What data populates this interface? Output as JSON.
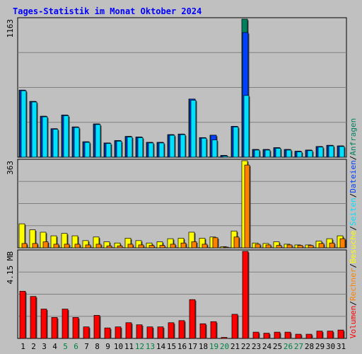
{
  "title": "Tages-Statistik im Monat Oktober 2024",
  "colors": {
    "background": "#c0c0c0",
    "title": "#0000ff",
    "anfragen": "#00805c",
    "dateien": "#0040ff",
    "seiten": "#00e0ff",
    "besuche": "#ffff00",
    "rechner": "#ff8000",
    "volumen": "#ff0000",
    "weekend_label": "#008040"
  },
  "right_legend": [
    {
      "text": "Volumen",
      "color": "#ff0000"
    },
    {
      "text": "/",
      "color": "#000000"
    },
    {
      "text": "Rechner",
      "color": "#ff8000"
    },
    {
      "text": "/",
      "color": "#000000"
    },
    {
      "text": "Besuche",
      "color": "#ffff00"
    },
    {
      "text": "/",
      "color": "#000000"
    },
    {
      "text": "Seiten",
      "color": "#00e0ff"
    },
    {
      "text": "/",
      "color": "#000000"
    },
    {
      "text": "Dateien",
      "color": "#0040ff"
    },
    {
      "text": "/",
      "color": "#000000"
    },
    {
      "text": "Anfragen",
      "color": "#00805c"
    }
  ],
  "chart_data": [
    {
      "type": "bar",
      "panel": "hits",
      "ymax_label": "1163",
      "ylim": [
        0,
        1163
      ],
      "categories": [
        "1",
        "2",
        "3",
        "4",
        "5",
        "6",
        "7",
        "8",
        "9",
        "10",
        "11",
        "12",
        "13",
        "14",
        "15",
        "16",
        "17",
        "18",
        "19",
        "20",
        "21",
        "22",
        "23",
        "24",
        "25",
        "26",
        "27",
        "28",
        "29",
        "30",
        "31"
      ],
      "series": [
        {
          "name": "Anfragen",
          "values": [
            565,
            470,
            345,
            240,
            355,
            255,
            130,
            280,
            120,
            140,
            175,
            170,
            125,
            125,
            190,
            195,
            490,
            165,
            185,
            15,
            260,
            1163,
            65,
            65,
            80,
            65,
            50,
            60,
            90,
            100,
            95
          ]
        },
        {
          "name": "Dateien",
          "values": [
            565,
            470,
            345,
            240,
            355,
            255,
            130,
            280,
            120,
            140,
            175,
            170,
            125,
            125,
            190,
            195,
            490,
            165,
            185,
            15,
            260,
            1050,
            65,
            65,
            80,
            65,
            50,
            60,
            90,
            100,
            95
          ]
        },
        {
          "name": "Seiten",
          "values": [
            560,
            465,
            340,
            235,
            350,
            250,
            125,
            275,
            115,
            135,
            170,
            165,
            120,
            120,
            185,
            190,
            480,
            160,
            145,
            10,
            255,
            520,
            60,
            60,
            75,
            60,
            45,
            55,
            85,
            95,
            90
          ]
        }
      ]
    },
    {
      "type": "bar",
      "panel": "visits",
      "ymax_label": "363",
      "ylim": [
        0,
        363
      ],
      "categories": [
        "1",
        "2",
        "3",
        "4",
        "5",
        "6",
        "7",
        "8",
        "9",
        "10",
        "11",
        "12",
        "13",
        "14",
        "15",
        "16",
        "17",
        "18",
        "19",
        "20",
        "21",
        "22",
        "23",
        "24",
        "25",
        "26",
        "27",
        "28",
        "29",
        "30",
        "31"
      ],
      "series": [
        {
          "name": "Besuche",
          "values": [
            100,
            75,
            65,
            50,
            60,
            50,
            30,
            45,
            25,
            20,
            40,
            30,
            20,
            25,
            38,
            40,
            65,
            40,
            45,
            5,
            70,
            363,
            20,
            18,
            25,
            15,
            12,
            12,
            28,
            38,
            50
          ]
        },
        {
          "name": "Rechner",
          "values": [
            18,
            18,
            25,
            15,
            15,
            15,
            12,
            15,
            8,
            8,
            15,
            12,
            10,
            10,
            15,
            20,
            25,
            15,
            42,
            3,
            45,
            345,
            15,
            12,
            10,
            12,
            10,
            10,
            18,
            20,
            38
          ]
        }
      ]
    },
    {
      "type": "bar",
      "panel": "volume",
      "ymax_label": "4.15 MB",
      "ylim": [
        0,
        4.15
      ],
      "categories": [
        "1",
        "2",
        "3",
        "4",
        "5",
        "6",
        "7",
        "8",
        "9",
        "10",
        "11",
        "12",
        "13",
        "14",
        "15",
        "16",
        "17",
        "18",
        "19",
        "20",
        "21",
        "22",
        "23",
        "24",
        "25",
        "26",
        "27",
        "28",
        "29",
        "30",
        "31"
      ],
      "series": [
        {
          "name": "Volumen",
          "values": [
            2.25,
            2.0,
            1.4,
            1.0,
            1.4,
            1.0,
            0.55,
            1.1,
            0.5,
            0.55,
            0.75,
            0.65,
            0.55,
            0.55,
            0.75,
            0.85,
            1.85,
            0.7,
            0.8,
            0.05,
            1.15,
            4.15,
            0.3,
            0.25,
            0.3,
            0.3,
            0.2,
            0.2,
            0.35,
            0.35,
            0.4
          ]
        }
      ]
    }
  ]
}
